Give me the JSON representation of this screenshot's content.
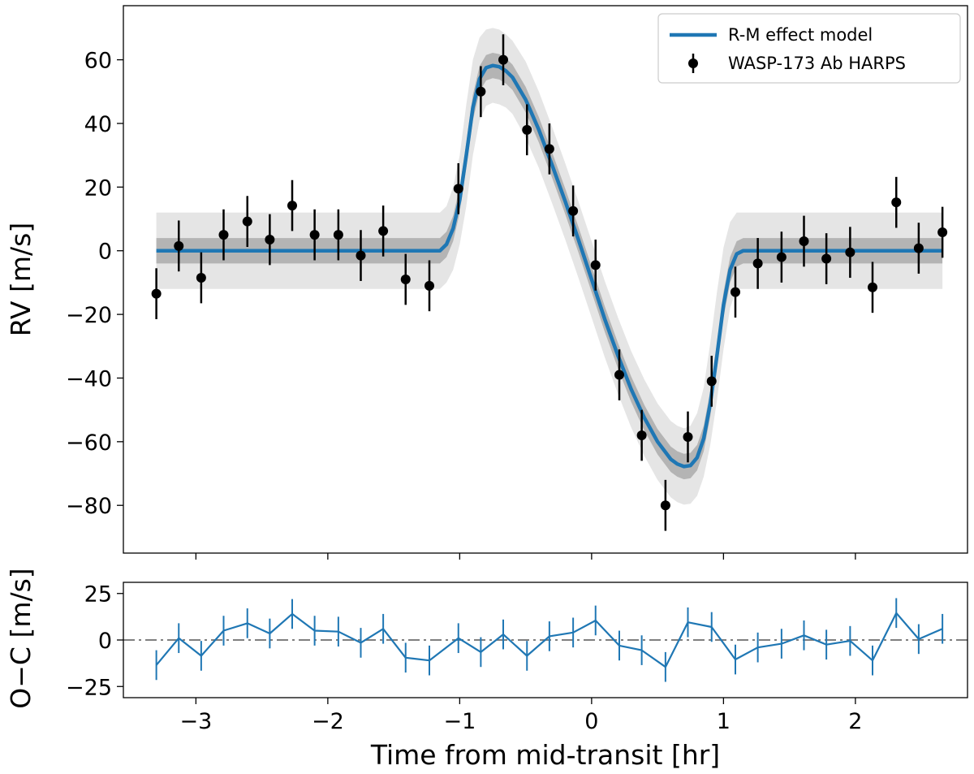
{
  "chart_data": [
    {
      "panel": "top",
      "type": "scatter",
      "ylabel": "RV [m/s]",
      "xlim": [
        -3.55,
        2.85
      ],
      "ylim": [
        -95,
        77
      ],
      "yticks": [
        60,
        40,
        20,
        0,
        -20,
        -40,
        -60,
        -80
      ],
      "ytick_labels": [
        "60",
        "40",
        "20",
        "0",
        "−20",
        "−40",
        "−60",
        "−80"
      ],
      "legend": {
        "position": "top-right",
        "entries": [
          {
            "label": "R-M effect model",
            "kind": "line"
          },
          {
            "label": "WASP-173 Ab HARPS",
            "kind": "errorbar-point"
          }
        ]
      },
      "series": [
        {
          "name": "WASP-173 Ab HARPS",
          "kind": "errorbar",
          "color": "#000000",
          "x": [
            -3.3,
            -3.13,
            -2.96,
            -2.79,
            -2.61,
            -2.44,
            -2.27,
            -2.1,
            -1.92,
            -1.75,
            -1.58,
            -1.41,
            -1.23,
            -1.01,
            -0.84,
            -0.67,
            -0.49,
            -0.32,
            -0.14,
            0.03,
            0.21,
            0.38,
            0.56,
            0.73,
            0.91,
            1.09,
            1.26,
            1.44,
            1.61,
            1.78,
            1.96,
            2.13,
            2.31,
            2.48,
            2.66
          ],
          "y": [
            -13.5,
            1.5,
            -8.5,
            5,
            9.2,
            3.5,
            14.2,
            5,
            5,
            -1.5,
            6.2,
            -9,
            -11,
            19.5,
            50,
            60,
            38,
            32,
            12.5,
            -4.5,
            -39,
            -58,
            -80,
            -58.5,
            -41,
            -13,
            -4,
            -2,
            3,
            -2.5,
            -0.5,
            -11.5,
            15.2,
            0.8,
            5.8
          ],
          "yerr": 8
        },
        {
          "name": "R-M effect model",
          "kind": "line",
          "color": "#1f77b4",
          "x": [
            -3.3,
            -1.15,
            -1.1,
            -1.05,
            -1.0,
            -0.95,
            -0.9,
            -0.85,
            -0.8,
            -0.75,
            -0.7,
            -0.65,
            -0.6,
            -0.5,
            -0.4,
            -0.3,
            -0.2,
            -0.1,
            0.0,
            0.1,
            0.2,
            0.3,
            0.4,
            0.5,
            0.6,
            0.65,
            0.7,
            0.75,
            0.8,
            0.85,
            0.9,
            0.95,
            1.0,
            1.05,
            1.1,
            1.15,
            2.66
          ],
          "y": [
            0,
            0,
            2,
            7,
            16,
            30,
            45,
            54,
            57.5,
            58.2,
            57.8,
            56.5,
            54.5,
            47.5,
            38,
            27,
            15.5,
            3.5,
            -9,
            -21.5,
            -33,
            -43.5,
            -52.5,
            -60,
            -65.5,
            -67,
            -67.8,
            -67.5,
            -65,
            -59,
            -48,
            -33,
            -17,
            -6,
            -1,
            0,
            0
          ]
        }
      ],
      "bands": [
        {
          "name": "outer band",
          "color": "#e5e5e5",
          "x": [
            -3.3,
            -1.15,
            -1.1,
            -1.05,
            -1.0,
            -0.95,
            -0.9,
            -0.85,
            -0.8,
            -0.75,
            -0.7,
            -0.65,
            -0.6,
            -0.5,
            -0.4,
            -0.3,
            -0.2,
            -0.1,
            0.0,
            0.1,
            0.2,
            0.3,
            0.4,
            0.5,
            0.6,
            0.65,
            0.7,
            0.75,
            0.8,
            0.85,
            0.9,
            0.95,
            1.0,
            1.05,
            1.1,
            1.15,
            2.66
          ],
          "upper": [
            12,
            12,
            14,
            20,
            30,
            46,
            60,
            67,
            69.5,
            70,
            69.5,
            68,
            66,
            59.5,
            50,
            39,
            27.5,
            15.5,
            3,
            -9.5,
            -21,
            -31.5,
            -40.5,
            -48,
            -53.5,
            -55,
            -55.8,
            -55,
            -51,
            -43,
            -29,
            -13,
            1,
            9,
            12,
            12,
            12
          ],
          "lower": [
            -12,
            -12,
            -10,
            -6,
            2,
            14,
            30,
            41,
            45.5,
            46.5,
            46,
            45,
            43,
            35.5,
            26,
            15,
            3.5,
            -8.5,
            -21,
            -33.5,
            -45,
            -55.5,
            -64.5,
            -72,
            -77.5,
            -79,
            -79.8,
            -79.5,
            -77,
            -71,
            -61,
            -47,
            -31,
            -18,
            -12,
            -12,
            -12
          ]
        },
        {
          "name": "inner band",
          "color": "#b4b4b4",
          "x": [
            -3.3,
            -1.15,
            -1.1,
            -1.05,
            -1.0,
            -0.95,
            -0.9,
            -0.85,
            -0.8,
            -0.75,
            -0.7,
            -0.65,
            -0.6,
            -0.5,
            -0.4,
            -0.3,
            -0.2,
            -0.1,
            0.0,
            0.1,
            0.2,
            0.3,
            0.4,
            0.5,
            0.6,
            0.65,
            0.7,
            0.75,
            0.8,
            0.85,
            0.9,
            0.95,
            1.0,
            1.05,
            1.1,
            1.15,
            2.66
          ],
          "upper": [
            4,
            4,
            6,
            11,
            20,
            34,
            49,
            58,
            61.5,
            62.2,
            61.8,
            60.5,
            58.5,
            51.5,
            42,
            31,
            19.5,
            7.5,
            -5,
            -17.5,
            -29,
            -39.5,
            -48.5,
            -56,
            -61.5,
            -63,
            -63.8,
            -63.5,
            -61,
            -55,
            -44,
            -29,
            -13,
            -2,
            3,
            4,
            4
          ],
          "lower": [
            -4,
            -4,
            -2,
            3,
            12,
            26,
            41,
            50,
            53.5,
            54.2,
            53.8,
            52.5,
            50.5,
            43.5,
            34,
            23,
            11.5,
            -0.5,
            -13,
            -25.5,
            -37,
            -47.5,
            -56.5,
            -64,
            -69.5,
            -71,
            -71.8,
            -71.5,
            -69,
            -63,
            -52,
            -37,
            -21,
            -10,
            -5,
            -4,
            -4
          ]
        }
      ]
    },
    {
      "panel": "bottom",
      "type": "line",
      "ylabel": "O−C [m/s]",
      "xlabel": "Time from mid-transit [hr]",
      "xlim": [
        -3.55,
        2.85
      ],
      "ylim": [
        -31,
        31
      ],
      "xticks": [
        -3,
        -2,
        -1,
        0,
        1,
        2
      ],
      "xtick_labels": [
        "−3",
        "−2",
        "−1",
        "0",
        "1",
        "2"
      ],
      "yticks": [
        25,
        0,
        -25
      ],
      "ytick_labels": [
        "25",
        "0",
        "−25"
      ],
      "reference_line": {
        "y": 0,
        "style": "dash-dot",
        "color": "#7f7f7f"
      },
      "series": [
        {
          "name": "residuals",
          "kind": "errorbar-line",
          "color": "#1f77b4",
          "x": [
            -3.3,
            -3.13,
            -2.96,
            -2.79,
            -2.61,
            -2.44,
            -2.27,
            -2.1,
            -1.92,
            -1.75,
            -1.58,
            -1.41,
            -1.23,
            -1.01,
            -0.84,
            -0.67,
            -0.49,
            -0.32,
            -0.14,
            0.03,
            0.21,
            0.38,
            0.56,
            0.73,
            0.91,
            1.09,
            1.26,
            1.44,
            1.61,
            1.78,
            1.96,
            2.13,
            2.31,
            2.48,
            2.66
          ],
          "y": [
            -13.5,
            1,
            -8.5,
            5,
            9,
            3.5,
            14,
            5,
            4.5,
            -1.5,
            6,
            -9.5,
            -11,
            1,
            -6.5,
            3,
            -8.5,
            2,
            4,
            10.5,
            -3,
            -5.5,
            -14.5,
            9.5,
            7,
            -10.5,
            -4,
            -2,
            2.5,
            -2.5,
            -0.5,
            -11,
            14.5,
            0.5,
            6
          ],
          "yerr": 8
        }
      ]
    }
  ]
}
